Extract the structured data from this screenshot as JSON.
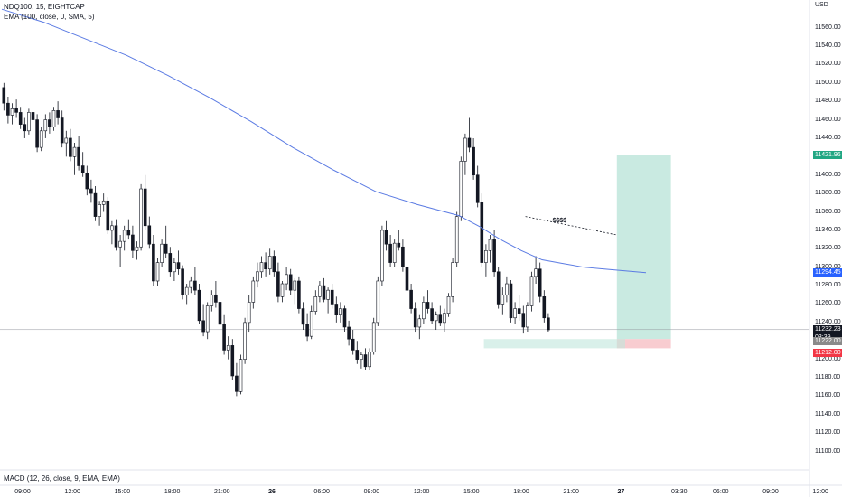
{
  "header": {
    "symbol_line": "NDQ100, 15, EIGHTCAP",
    "ema_line": "EMA (100, close, 0, SMA, 5)",
    "currency": "USD"
  },
  "macd_label": "MACD (12, 26, close, 9, EMA, EMA)",
  "annotation_text": "$$$$",
  "colors": {
    "up": "#ffffff",
    "down": "#131722",
    "ema": "#5b7be3",
    "target_zone": "#bfe6dc",
    "stop_zone": "#f7c6cb",
    "tp_tag": "#22a783",
    "ema_tag": "#2962ff",
    "stop_tag": "#f23645"
  },
  "price_tags": {
    "take_profit": "11421.96",
    "ema_value": "11294.45",
    "last_price": "11232.23",
    "countdown": "03:39",
    "entry": "11222.00",
    "stop": "11212.00"
  },
  "chart_data": {
    "type": "candlestick",
    "y_axis": {
      "ylim": [
        11080,
        11590
      ],
      "ticks": [
        11100,
        11120,
        11140,
        11160,
        11180,
        11200,
        11220,
        11240,
        11260,
        11280,
        11300,
        11320,
        11340,
        11360,
        11380,
        11400,
        11420,
        11440,
        11460,
        11480,
        11500,
        11520,
        11540,
        11560
      ],
      "tick_labels": [
        "11100.00",
        "11120.00",
        "11140.00",
        "11160.00",
        "11180.00",
        "11200.00",
        "11220.00",
        "11240.00",
        "11260.00",
        "11280.00",
        "11300.00",
        "11320.00",
        "11340.00",
        "11360.00",
        "11380.00",
        "11400.00",
        "11420.00",
        "11440.00",
        "11460.00",
        "11480.00",
        "11500.00",
        "11520.00",
        "11540.00",
        "11560.00"
      ]
    },
    "x_axis": {
      "labels": [
        "09:00",
        "12:00",
        "15:00",
        "18:00",
        "21:00",
        "26",
        "06:00",
        "09:00",
        "12:00",
        "15:00",
        "18:00",
        "21:00",
        "27",
        "03:30",
        "06:00",
        "09:00",
        "12:00"
      ],
      "bar_index": [
        5,
        17,
        29,
        41,
        53,
        65,
        77,
        89,
        101,
        113,
        125,
        137,
        149,
        163,
        173,
        185,
        197
      ]
    },
    "grid": false,
    "candles": [
      [
        11495,
        11500,
        11470,
        11478
      ],
      [
        11478,
        11485,
        11456,
        11465
      ],
      [
        11465,
        11478,
        11455,
        11472
      ],
      [
        11472,
        11482,
        11462,
        11468
      ],
      [
        11468,
        11474,
        11450,
        11455
      ],
      [
        11455,
        11462,
        11440,
        11448
      ],
      [
        11448,
        11472,
        11444,
        11468
      ],
      [
        11468,
        11478,
        11455,
        11460
      ],
      [
        11460,
        11466,
        11425,
        11430
      ],
      [
        11430,
        11452,
        11426,
        11448
      ],
      [
        11448,
        11466,
        11440,
        11460
      ],
      [
        11460,
        11468,
        11445,
        11452
      ],
      [
        11452,
        11474,
        11448,
        11470
      ],
      [
        11470,
        11480,
        11455,
        11462
      ],
      [
        11462,
        11470,
        11430,
        11435
      ],
      [
        11435,
        11448,
        11420,
        11440
      ],
      [
        11440,
        11450,
        11415,
        11420
      ],
      [
        11420,
        11435,
        11400,
        11430
      ],
      [
        11430,
        11442,
        11405,
        11410
      ],
      [
        11410,
        11425,
        11398,
        11402
      ],
      [
        11402,
        11410,
        11378,
        11385
      ],
      [
        11385,
        11395,
        11370,
        11380
      ],
      [
        11380,
        11388,
        11350,
        11355
      ],
      [
        11355,
        11372,
        11345,
        11368
      ],
      [
        11368,
        11380,
        11360,
        11372
      ],
      [
        11372,
        11376,
        11336,
        11340
      ],
      [
        11340,
        11350,
        11325,
        11345
      ],
      [
        11345,
        11352,
        11318,
        11322
      ],
      [
        11322,
        11335,
        11300,
        11328
      ],
      [
        11328,
        11345,
        11318,
        11340
      ],
      [
        11340,
        11352,
        11330,
        11335
      ],
      [
        11335,
        11345,
        11310,
        11318
      ],
      [
        11318,
        11328,
        11308,
        11322
      ],
      [
        11322,
        11390,
        11318,
        11385
      ],
      [
        11385,
        11400,
        11340,
        11345
      ],
      [
        11345,
        11355,
        11320,
        11325
      ],
      [
        11325,
        11335,
        11280,
        11285
      ],
      [
        11285,
        11310,
        11280,
        11305
      ],
      [
        11305,
        11330,
        11300,
        11325
      ],
      [
        11325,
        11345,
        11310,
        11315
      ],
      [
        11315,
        11322,
        11290,
        11295
      ],
      [
        11295,
        11310,
        11285,
        11305
      ],
      [
        11305,
        11318,
        11292,
        11298
      ],
      [
        11298,
        11302,
        11265,
        11270
      ],
      [
        11270,
        11282,
        11260,
        11278
      ],
      [
        11278,
        11290,
        11272,
        11285
      ],
      [
        11285,
        11300,
        11270,
        11275
      ],
      [
        11275,
        11282,
        11238,
        11242
      ],
      [
        11242,
        11260,
        11225,
        11230
      ],
      [
        11230,
        11262,
        11222,
        11258
      ],
      [
        11258,
        11275,
        11252,
        11270
      ],
      [
        11270,
        11285,
        11256,
        11262
      ],
      [
        11262,
        11270,
        11232,
        11238
      ],
      [
        11238,
        11248,
        11205,
        11210
      ],
      [
        11210,
        11225,
        11200,
        11215
      ],
      [
        11215,
        11222,
        11178,
        11182
      ],
      [
        11182,
        11196,
        11160,
        11165
      ],
      [
        11165,
        11205,
        11162,
        11200
      ],
      [
        11200,
        11245,
        11195,
        11240
      ],
      [
        11240,
        11270,
        11230,
        11262
      ],
      [
        11262,
        11290,
        11255,
        11285
      ],
      [
        11285,
        11305,
        11278,
        11295
      ],
      [
        11295,
        11312,
        11288,
        11305
      ],
      [
        11305,
        11316,
        11290,
        11298
      ],
      [
        11298,
        11320,
        11292,
        11312
      ],
      [
        11312,
        11318,
        11290,
        11295
      ],
      [
        11295,
        11305,
        11262,
        11268
      ],
      [
        11268,
        11285,
        11262,
        11282
      ],
      [
        11282,
        11300,
        11275,
        11292
      ],
      [
        11292,
        11298,
        11270,
        11275
      ],
      [
        11275,
        11288,
        11260,
        11285
      ],
      [
        11285,
        11290,
        11250,
        11255
      ],
      [
        11255,
        11262,
        11232,
        11238
      ],
      [
        11238,
        11250,
        11220,
        11225
      ],
      [
        11225,
        11258,
        11222,
        11252
      ],
      [
        11252,
        11275,
        11248,
        11268
      ],
      [
        11268,
        11285,
        11262,
        11280
      ],
      [
        11280,
        11288,
        11262,
        11265
      ],
      [
        11265,
        11278,
        11250,
        11275
      ],
      [
        11275,
        11282,
        11255,
        11260
      ],
      [
        11260,
        11268,
        11240,
        11248
      ],
      [
        11248,
        11262,
        11240,
        11255
      ],
      [
        11255,
        11258,
        11230,
        11235
      ],
      [
        11235,
        11242,
        11215,
        11222
      ],
      [
        11222,
        11232,
        11205,
        11210
      ],
      [
        11210,
        11220,
        11195,
        11200
      ],
      [
        11200,
        11208,
        11190,
        11205
      ],
      [
        11205,
        11212,
        11188,
        11192
      ],
      [
        11192,
        11212,
        11188,
        11208
      ],
      [
        11208,
        11245,
        11205,
        11240
      ],
      [
        11240,
        11290,
        11236,
        11285
      ],
      [
        11285,
        11345,
        11280,
        11340
      ],
      [
        11340,
        11350,
        11318,
        11325
      ],
      [
        11325,
        11335,
        11300,
        11305
      ],
      [
        11305,
        11330,
        11300,
        11326
      ],
      [
        11326,
        11340,
        11318,
        11322
      ],
      [
        11322,
        11330,
        11295,
        11300
      ],
      [
        11300,
        11305,
        11270,
        11275
      ],
      [
        11275,
        11282,
        11250,
        11255
      ],
      [
        11255,
        11262,
        11230,
        11235
      ],
      [
        11235,
        11248,
        11222,
        11244
      ],
      [
        11244,
        11268,
        11238,
        11262
      ],
      [
        11262,
        11275,
        11250,
        11255
      ],
      [
        11255,
        11262,
        11238,
        11242
      ],
      [
        11242,
        11252,
        11232,
        11248
      ],
      [
        11248,
        11258,
        11236,
        11240
      ],
      [
        11240,
        11255,
        11230,
        11250
      ],
      [
        11250,
        11272,
        11246,
        11268
      ],
      [
        11268,
        11310,
        11262,
        11305
      ],
      [
        11305,
        11360,
        11300,
        11355
      ],
      [
        11355,
        11420,
        11350,
        11415
      ],
      [
        11415,
        11445,
        11400,
        11440
      ],
      [
        11440,
        11462,
        11425,
        11430
      ],
      [
        11430,
        11440,
        11395,
        11400
      ],
      [
        11400,
        11410,
        11365,
        11370
      ],
      [
        11370,
        11380,
        11300,
        11305
      ],
      [
        11305,
        11325,
        11290,
        11318
      ],
      [
        11318,
        11335,
        11305,
        11330
      ],
      [
        11330,
        11340,
        11290,
        11295
      ],
      [
        11295,
        11300,
        11255,
        11260
      ],
      [
        11260,
        11278,
        11248,
        11270
      ],
      [
        11270,
        11290,
        11262,
        11282
      ],
      [
        11282,
        11286,
        11240,
        11245
      ],
      [
        11245,
        11262,
        11238,
        11255
      ],
      [
        11255,
        11270,
        11242,
        11250
      ],
      [
        11250,
        11258,
        11228,
        11235
      ],
      [
        11235,
        11262,
        11230,
        11258
      ],
      [
        11258,
        11295,
        11252,
        11290
      ],
      [
        11290,
        11312,
        11282,
        11298
      ],
      [
        11298,
        11305,
        11262,
        11268
      ],
      [
        11268,
        11275,
        11240,
        11245
      ],
      [
        11245,
        11250,
        11230,
        11232
      ]
    ],
    "ema": [
      11580,
      11566,
      11548,
      11530,
      11508,
      11484,
      11458,
      11430,
      11405,
      11382,
      11368,
      11356,
      11344,
      11330,
      11318,
      11308,
      11304,
      11300,
      11298,
      11296,
      11294
    ],
    "ema_bar_index": [
      0,
      10,
      20,
      30,
      40,
      50,
      60,
      70,
      80,
      90,
      100,
      110,
      115,
      120,
      125,
      130,
      135,
      140,
      145,
      150,
      155
    ],
    "position": {
      "entry": 11222,
      "stop": 11212,
      "target": 11421.96,
      "long_start_bar": 148,
      "long_end_bar": 161
    },
    "zone": {
      "from_bar": 116,
      "to_bar": 150,
      "low": 11212,
      "high": 11222
    },
    "trendline": {
      "bar1": 126,
      "price1": 11355,
      "bar2": 148,
      "price2": 11335
    }
  }
}
